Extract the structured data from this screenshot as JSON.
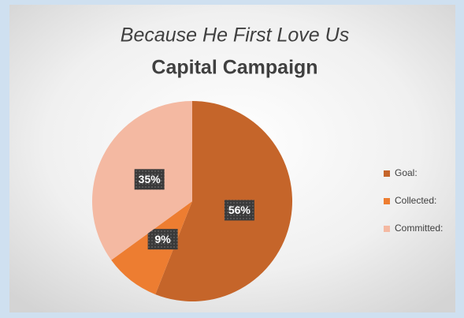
{
  "chart_data": {
    "type": "pie",
    "title": "Because He First Love Us",
    "subtitle": "Capital Campaign",
    "categories": [
      "Goal:",
      "Collected:",
      "Committed:"
    ],
    "values": [
      56,
      9,
      35
    ],
    "value_labels": [
      "56%",
      "9%",
      "35%"
    ],
    "colors": [
      "#c5652a",
      "#ed7d31",
      "#f4b9a2"
    ],
    "legend": "right"
  }
}
